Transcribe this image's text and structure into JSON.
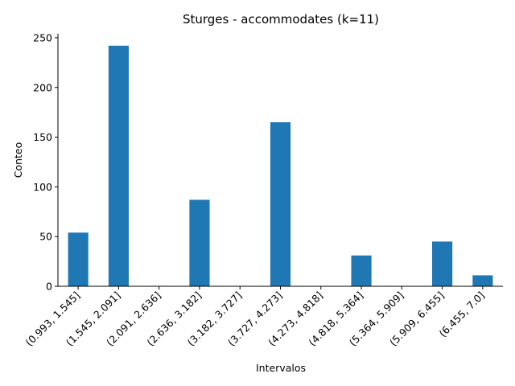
{
  "chart_data": {
    "type": "bar",
    "title": "Sturges - accommodates (k=11)",
    "xlabel": "Intervalos",
    "ylabel": "Conteo",
    "categories": [
      "(0.993, 1.545]",
      "(1.545, 2.091]",
      "(2.091, 2.636]",
      "(2.636, 3.182]",
      "(3.182, 3.727]",
      "(3.727, 4.273]",
      "(4.273, 4.818]",
      "(4.818, 5.364]",
      "(5.364, 5.909]",
      "(5.909, 6.455]",
      "(6.455, 7.0]"
    ],
    "values": [
      54,
      242,
      0,
      87,
      0,
      165,
      0,
      31,
      0,
      45,
      11
    ],
    "ylim": [
      0,
      254
    ],
    "yticks": [
      0,
      50,
      100,
      150,
      200,
      250
    ],
    "grid": false,
    "legend": "none",
    "bar_color": "#1f77b4"
  }
}
